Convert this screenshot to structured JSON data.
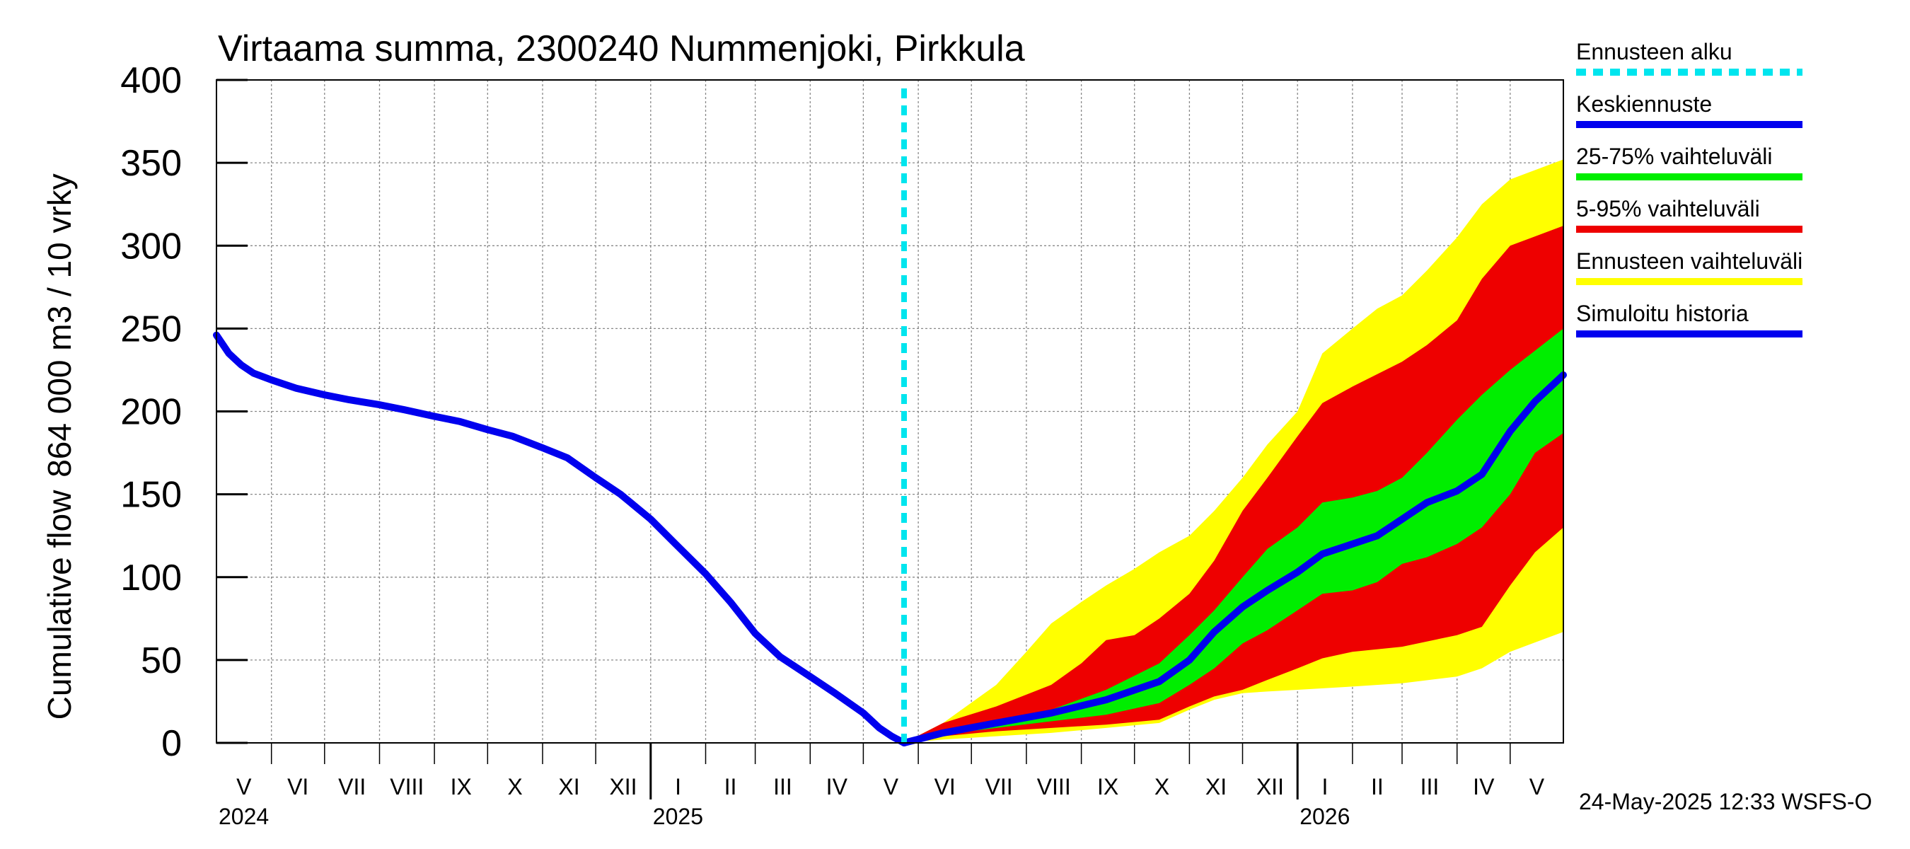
{
  "chart_data": {
    "type": "area",
    "title": "Virtaama summa, 2300240 Nummenjoki, Pirkkula",
    "ylabel_top": "864 000 m3 / 10 vrky",
    "ylabel_bottom": "Cumulative flow",
    "ylim": [
      0,
      400
    ],
    "yticks": [
      0,
      50,
      100,
      150,
      200,
      250,
      300,
      350,
      400
    ],
    "xlim": [
      "2024-05-01",
      "2026-05-31"
    ],
    "x_month_labels": [
      {
        "label": "V",
        "start": "2024-05-01"
      },
      {
        "label": "VI",
        "start": "2024-06-01"
      },
      {
        "label": "VII",
        "start": "2024-07-01"
      },
      {
        "label": "VIII",
        "start": "2024-08-01"
      },
      {
        "label": "IX",
        "start": "2024-09-01"
      },
      {
        "label": "X",
        "start": "2024-10-01"
      },
      {
        "label": "XI",
        "start": "2024-11-01"
      },
      {
        "label": "XII",
        "start": "2024-12-01"
      },
      {
        "label": "I",
        "start": "2025-01-01"
      },
      {
        "label": "II",
        "start": "2025-02-01"
      },
      {
        "label": "III",
        "start": "2025-03-01"
      },
      {
        "label": "IV",
        "start": "2025-04-01"
      },
      {
        "label": "V",
        "start": "2025-05-01"
      },
      {
        "label": "VI",
        "start": "2025-06-01"
      },
      {
        "label": "VII",
        "start": "2025-07-01"
      },
      {
        "label": "VIII",
        "start": "2025-08-01"
      },
      {
        "label": "IX",
        "start": "2025-09-01"
      },
      {
        "label": "X",
        "start": "2025-10-01"
      },
      {
        "label": "XI",
        "start": "2025-11-01"
      },
      {
        "label": "XII",
        "start": "2025-12-01"
      },
      {
        "label": "I",
        "start": "2026-01-01"
      },
      {
        "label": "II",
        "start": "2026-02-01"
      },
      {
        "label": "III",
        "start": "2026-03-01"
      },
      {
        "label": "IV",
        "start": "2026-04-01"
      },
      {
        "label": "V",
        "start": "2026-05-01"
      }
    ],
    "x_year_labels": [
      {
        "label": "2024",
        "start": "2024-05-01"
      },
      {
        "label": "2025",
        "start": "2025-01-01"
      },
      {
        "label": "2026",
        "start": "2026-01-01"
      }
    ],
    "forecast_start": "2025-05-24",
    "grid": true,
    "legend_position": "right",
    "legend": [
      {
        "label": "Ennusteen alku",
        "color": "#00e5ee",
        "style": "dashed"
      },
      {
        "label": "Keskiennuste",
        "color": "#0000ee",
        "style": "solid"
      },
      {
        "label": "25-75% vaihteluväli",
        "color": "#00ee00",
        "style": "solid"
      },
      {
        "label": "5-95% vaihteluväli",
        "color": "#ee0000",
        "style": "solid"
      },
      {
        "label": "Ennusteen vaihteluväli",
        "color": "#ffff00",
        "style": "solid"
      },
      {
        "label": "Simuloitu historia",
        "color": "#0000ee",
        "style": "solid"
      }
    ],
    "series": [
      {
        "name": "Simuloitu historia",
        "color": "#0000ee",
        "points": [
          [
            "2024-05-01",
            246
          ],
          [
            "2024-05-08",
            235
          ],
          [
            "2024-05-15",
            228
          ],
          [
            "2024-05-22",
            223
          ],
          [
            "2024-06-01",
            219
          ],
          [
            "2024-06-15",
            214
          ],
          [
            "2024-07-01",
            210
          ],
          [
            "2024-07-15",
            207
          ],
          [
            "2024-08-01",
            204
          ],
          [
            "2024-08-15",
            201
          ],
          [
            "2024-09-01",
            197
          ],
          [
            "2024-09-15",
            194
          ],
          [
            "2024-10-01",
            189
          ],
          [
            "2024-10-15",
            185
          ],
          [
            "2024-11-01",
            178
          ],
          [
            "2024-11-15",
            172
          ],
          [
            "2024-12-01",
            160
          ],
          [
            "2024-12-15",
            150
          ],
          [
            "2025-01-01",
            135
          ],
          [
            "2025-01-15",
            120
          ],
          [
            "2025-02-01",
            102
          ],
          [
            "2025-02-15",
            85
          ],
          [
            "2025-03-01",
            66
          ],
          [
            "2025-03-15",
            52
          ],
          [
            "2025-04-01",
            40
          ],
          [
            "2025-04-15",
            30
          ],
          [
            "2025-05-01",
            18
          ],
          [
            "2025-05-10",
            9
          ],
          [
            "2025-05-17",
            4
          ],
          [
            "2025-05-24",
            0
          ]
        ]
      },
      {
        "name": "Keskiennuste",
        "color": "#0000ee",
        "points": [
          [
            "2025-05-24",
            0
          ],
          [
            "2025-06-15",
            6
          ],
          [
            "2025-07-15",
            12
          ],
          [
            "2025-08-15",
            18
          ],
          [
            "2025-09-15",
            26
          ],
          [
            "2025-10-15",
            37
          ],
          [
            "2025-11-01",
            50
          ],
          [
            "2025-11-15",
            67
          ],
          [
            "2025-12-01",
            82
          ],
          [
            "2025-12-15",
            92
          ],
          [
            "2026-01-01",
            103
          ],
          [
            "2026-01-15",
            114
          ],
          [
            "2026-02-01",
            120
          ],
          [
            "2026-02-15",
            125
          ],
          [
            "2026-03-01",
            135
          ],
          [
            "2026-03-15",
            145
          ],
          [
            "2026-04-01",
            152
          ],
          [
            "2026-04-15",
            162
          ],
          [
            "2026-05-01",
            188
          ],
          [
            "2026-05-15",
            206
          ],
          [
            "2026-05-31",
            222
          ]
        ]
      },
      {
        "name": "Ennusteen vaihteluväli",
        "color": "#ffff00",
        "upper": [
          [
            "2025-05-24",
            0
          ],
          [
            "2025-06-15",
            12
          ],
          [
            "2025-07-15",
            35
          ],
          [
            "2025-08-01",
            55
          ],
          [
            "2025-08-15",
            72
          ],
          [
            "2025-09-01",
            85
          ],
          [
            "2025-09-15",
            95
          ],
          [
            "2025-10-01",
            105
          ],
          [
            "2025-10-15",
            115
          ],
          [
            "2025-11-01",
            125
          ],
          [
            "2025-11-15",
            140
          ],
          [
            "2025-12-01",
            160
          ],
          [
            "2025-12-15",
            180
          ],
          [
            "2026-01-01",
            200
          ],
          [
            "2026-01-15",
            235
          ],
          [
            "2026-02-01",
            250
          ],
          [
            "2026-02-15",
            262
          ],
          [
            "2026-03-01",
            270
          ],
          [
            "2026-03-15",
            285
          ],
          [
            "2026-04-01",
            305
          ],
          [
            "2026-04-15",
            325
          ],
          [
            "2026-05-01",
            340
          ],
          [
            "2026-05-31",
            352
          ]
        ],
        "lower": [
          [
            "2025-05-24",
            0
          ],
          [
            "2025-06-15",
            2
          ],
          [
            "2025-07-15",
            4
          ],
          [
            "2025-08-15",
            6
          ],
          [
            "2025-09-15",
            9
          ],
          [
            "2025-10-15",
            12
          ],
          [
            "2025-11-01",
            20
          ],
          [
            "2025-11-15",
            26
          ],
          [
            "2025-12-01",
            30
          ],
          [
            "2025-12-15",
            31
          ],
          [
            "2026-01-01",
            32
          ],
          [
            "2026-02-01",
            34
          ],
          [
            "2026-03-01",
            36
          ],
          [
            "2026-04-01",
            40
          ],
          [
            "2026-04-15",
            45
          ],
          [
            "2026-05-01",
            55
          ],
          [
            "2026-05-31",
            67
          ]
        ]
      },
      {
        "name": "5-95% vaihteluväli",
        "color": "#ee0000",
        "upper": [
          [
            "2025-05-24",
            0
          ],
          [
            "2025-06-15",
            12
          ],
          [
            "2025-07-15",
            22
          ],
          [
            "2025-08-15",
            35
          ],
          [
            "2025-09-01",
            48
          ],
          [
            "2025-09-15",
            62
          ],
          [
            "2025-10-01",
            65
          ],
          [
            "2025-10-15",
            75
          ],
          [
            "2025-11-01",
            90
          ],
          [
            "2025-11-15",
            110
          ],
          [
            "2025-12-01",
            140
          ],
          [
            "2025-12-15",
            160
          ],
          [
            "2026-01-01",
            185
          ],
          [
            "2026-01-15",
            205
          ],
          [
            "2026-02-01",
            215
          ],
          [
            "2026-03-01",
            230
          ],
          [
            "2026-03-15",
            240
          ],
          [
            "2026-04-01",
            255
          ],
          [
            "2026-04-15",
            280
          ],
          [
            "2026-05-01",
            300
          ],
          [
            "2026-05-31",
            312
          ]
        ],
        "lower": [
          [
            "2025-05-24",
            0
          ],
          [
            "2025-06-15",
            4
          ],
          [
            "2025-07-15",
            7
          ],
          [
            "2025-08-15",
            9
          ],
          [
            "2025-09-15",
            11
          ],
          [
            "2025-10-15",
            14
          ],
          [
            "2025-11-01",
            22
          ],
          [
            "2025-11-15",
            28
          ],
          [
            "2025-12-01",
            32
          ],
          [
            "2025-12-15",
            38
          ],
          [
            "2026-01-01",
            45
          ],
          [
            "2026-01-15",
            51
          ],
          [
            "2026-02-01",
            55
          ],
          [
            "2026-03-01",
            58
          ],
          [
            "2026-04-01",
            65
          ],
          [
            "2026-04-15",
            70
          ],
          [
            "2026-05-01",
            95
          ],
          [
            "2026-05-15",
            115
          ],
          [
            "2026-05-31",
            130
          ]
        ]
      },
      {
        "name": "25-75% vaihteluväli",
        "color": "#00ee00",
        "upper": [
          [
            "2025-05-24",
            0
          ],
          [
            "2025-06-15",
            8
          ],
          [
            "2025-07-15",
            14
          ],
          [
            "2025-08-15",
            20
          ],
          [
            "2025-09-15",
            32
          ],
          [
            "2025-10-15",
            48
          ],
          [
            "2025-11-01",
            65
          ],
          [
            "2025-11-15",
            80
          ],
          [
            "2025-12-01",
            100
          ],
          [
            "2025-12-15",
            117
          ],
          [
            "2026-01-01",
            130
          ],
          [
            "2026-01-15",
            145
          ],
          [
            "2026-02-01",
            148
          ],
          [
            "2026-02-15",
            152
          ],
          [
            "2026-03-01",
            160
          ],
          [
            "2026-03-15",
            175
          ],
          [
            "2026-04-01",
            195
          ],
          [
            "2026-04-15",
            210
          ],
          [
            "2026-05-01",
            225
          ],
          [
            "2026-05-31",
            250
          ]
        ],
        "lower": [
          [
            "2025-05-24",
            0
          ],
          [
            "2025-06-15",
            5
          ],
          [
            "2025-07-15",
            9
          ],
          [
            "2025-08-15",
            13
          ],
          [
            "2025-09-15",
            17
          ],
          [
            "2025-10-15",
            24
          ],
          [
            "2025-11-01",
            35
          ],
          [
            "2025-11-15",
            45
          ],
          [
            "2025-12-01",
            60
          ],
          [
            "2025-12-15",
            68
          ],
          [
            "2026-01-01",
            80
          ],
          [
            "2026-01-15",
            90
          ],
          [
            "2026-02-01",
            92
          ],
          [
            "2026-02-15",
            97
          ],
          [
            "2026-03-01",
            108
          ],
          [
            "2026-03-15",
            112
          ],
          [
            "2026-04-01",
            120
          ],
          [
            "2026-04-15",
            130
          ],
          [
            "2026-05-01",
            150
          ],
          [
            "2026-05-15",
            175
          ],
          [
            "2026-05-31",
            187
          ]
        ]
      }
    ]
  },
  "footer": {
    "timestamp": "24-May-2025 12:33 WSFS-O"
  }
}
